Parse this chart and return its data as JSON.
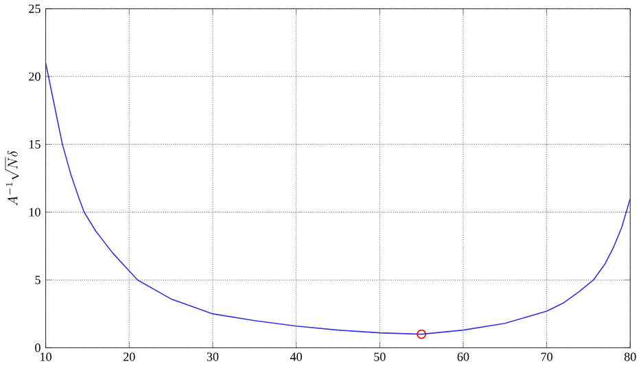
{
  "chart_data": {
    "type": "line",
    "ylabel": "A^{-1}\\sqrt{N}\\delta",
    "xlim": [
      10,
      80
    ],
    "ylim": [
      0,
      25
    ],
    "xticks": [
      10,
      20,
      30,
      40,
      50,
      60,
      70,
      80
    ],
    "yticks": [
      0,
      5,
      10,
      15,
      20,
      25
    ],
    "grid": true,
    "series": [
      {
        "color": "#3333dd",
        "marker": "none",
        "x": [
          10,
          11,
          12,
          13,
          14,
          14.6,
          16,
          18,
          21,
          25,
          30,
          35,
          40,
          45,
          50,
          55,
          60,
          65,
          70,
          72,
          74,
          75.6,
          77,
          78,
          79,
          80
        ],
        "values": [
          21,
          18,
          15,
          12.8,
          11,
          10,
          8.6,
          7,
          5,
          3.6,
          2.5,
          2,
          1.6,
          1.3,
          1.1,
          1,
          1.3,
          1.8,
          2.7,
          3.3,
          4.2,
          5,
          6.2,
          7.4,
          8.9,
          11
        ]
      },
      {
        "type": "scatter",
        "color": "#dd0000",
        "marker": "circle",
        "x": [
          55
        ],
        "values": [
          1
        ]
      }
    ]
  }
}
